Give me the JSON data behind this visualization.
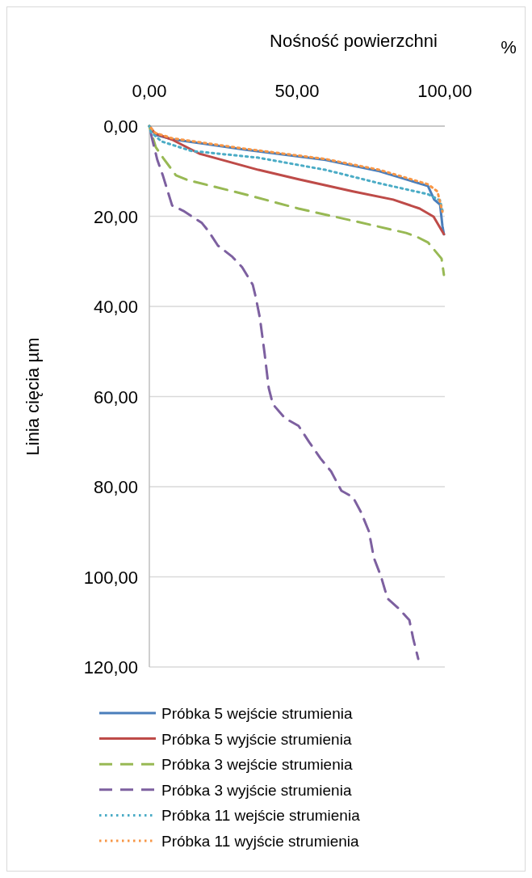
{
  "chart_data": {
    "type": "line",
    "xlabel": "Nośność powierzchni",
    "ylabel": "Linia cięcia µm",
    "annotations": [
      "%"
    ],
    "xlim": [
      0,
      100
    ],
    "xticks": [
      {
        "value": 0,
        "label": "0,00"
      },
      {
        "value": 50,
        "label": "50,00"
      },
      {
        "value": 100,
        "label": "100,00"
      }
    ],
    "ylim": [
      120,
      0
    ],
    "yticks": [
      {
        "value": 0,
        "label": "0,00"
      },
      {
        "value": 20,
        "label": "20,00"
      },
      {
        "value": 40,
        "label": "40,00"
      },
      {
        "value": 60,
        "label": "60,00"
      },
      {
        "value": 80,
        "label": "80,00"
      },
      {
        "value": 100,
        "label": "100,00"
      },
      {
        "value": 120,
        "label": "120,00"
      }
    ],
    "grid": "y",
    "legend": "bottom",
    "series": [
      {
        "name": "Próbka 5 wejście strumienia",
        "color": "#4a7ebb",
        "line_style": "solid",
        "x": [
          0,
          2.2,
          7.7,
          32.2,
          59.6,
          77.9,
          94.3,
          96.4,
          98.4,
          99.2,
          99.7
        ],
        "values": [
          0,
          2,
          2.9,
          5.2,
          7.5,
          10,
          13.3,
          16.3,
          17.4,
          22.2,
          24
        ]
      },
      {
        "name": "Próbka 5 wyjście strumienia",
        "color": "#be4b48",
        "line_style": "solid",
        "x": [
          0,
          1.9,
          7.7,
          16.9,
          36.9,
          50.5,
          68.9,
          82.5,
          91.5,
          96.2,
          99.7
        ],
        "values": [
          0,
          1.6,
          3,
          6.1,
          9.7,
          11.8,
          14.5,
          16.3,
          18.3,
          20.1,
          24
        ]
      },
      {
        "name": "Próbka 3 wejście strumienia",
        "color": "#98b954",
        "line_style": "dashed",
        "x": [
          0,
          1.4,
          2.2,
          4.6,
          9,
          13.1,
          32.2,
          50.5,
          68.9,
          86.9,
          90.7,
          94.3,
          98.9,
          99.7
        ],
        "values": [
          0,
          3,
          4.7,
          7,
          10.9,
          12,
          15.1,
          18.3,
          21,
          23.7,
          24.6,
          25.8,
          29.4,
          33
        ]
      },
      {
        "name": "Próbka 3 wyjście strumienia",
        "color": "#7d60a0",
        "line_style": "dashed",
        "x": [
          0,
          1,
          2.7,
          4.6,
          7.7,
          11.5,
          17.8,
          20,
          23.2,
          28.1,
          31.4,
          35,
          36,
          37.4,
          39,
          40.4,
          41.8,
          45.9,
          50.5,
          54.1,
          57.9,
          61.5,
          65,
          68.9,
          71.6,
          74.3,
          76,
          78.4,
          80.6,
          84.2,
          88,
          89.3,
          91
        ],
        "values": [
          0,
          3,
          7.5,
          11,
          17.6,
          18.8,
          21.5,
          23.3,
          26.5,
          29,
          31.3,
          35.2,
          37.9,
          42.5,
          50.4,
          58.1,
          61.7,
          64.8,
          66.5,
          70.1,
          73.7,
          76.6,
          80.9,
          82.3,
          85.6,
          89.9,
          95.8,
          99.9,
          104.8,
          106.9,
          109.6,
          113.7,
          118.2
        ]
      },
      {
        "name": "Próbka 11 wejście strumienia",
        "color": "#4bacc6",
        "line_style": "dotted",
        "x": [
          0,
          0.5,
          4.1,
          14.2,
          36.9,
          59.6,
          77.9,
          94.3,
          98.4,
          99.2
        ],
        "values": [
          0,
          1.3,
          3.4,
          5.5,
          7,
          9.7,
          12.7,
          15.1,
          16.5,
          18.7
        ]
      },
      {
        "name": "Próbka 11 wyjście strumienia",
        "color": "#f79646",
        "line_style": "dotted",
        "x": [
          0,
          2,
          7.7,
          32.2,
          59.6,
          77.9,
          94.3,
          97.5,
          99.2
        ],
        "values": [
          0,
          1.5,
          2.7,
          5,
          7.3,
          9.7,
          12.9,
          14.5,
          19
        ]
      }
    ]
  }
}
